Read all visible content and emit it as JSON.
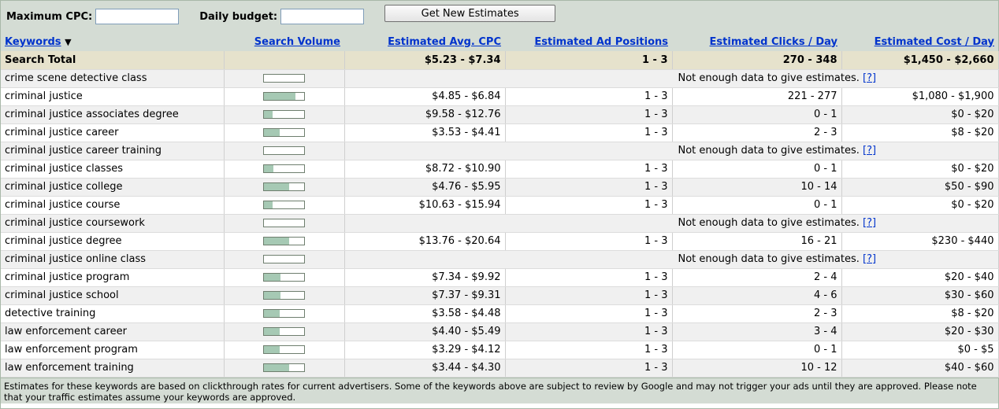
{
  "toolbar": {
    "max_cpc_label": "Maximum CPC:",
    "max_cpc_value": "",
    "daily_budget_label": "Daily budget:",
    "daily_budget_value": "",
    "estimate_button": "Get New Estimates"
  },
  "columns": {
    "keywords": "Keywords",
    "sort_arrow": "▼",
    "search_volume": "Search Volume",
    "avg_cpc": "Estimated Avg. CPC",
    "ad_positions": "Estimated Ad Positions",
    "clicks": "Estimated Clicks / Day",
    "cost": "Estimated Cost / Day"
  },
  "total": {
    "label": "Search Total",
    "cpc": "$5.23 - $7.34",
    "positions": "1 - 3",
    "clicks": "270 - 348",
    "cost": "$1,450 - $2,660"
  },
  "no_data_text": "Not enough data to give estimates.",
  "no_data_link": "[?]",
  "rows": [
    {
      "keyword": "crime scene detective class",
      "volume": 0.0,
      "nodata": true
    },
    {
      "keyword": "criminal justice",
      "volume": 0.78,
      "cpc": "$4.85 - $6.84",
      "positions": "1 - 3",
      "clicks": "221 - 277",
      "cost": "$1,080 - $1,900"
    },
    {
      "keyword": "criminal justice associates degree",
      "volume": 0.22,
      "cpc": "$9.58 - $12.76",
      "positions": "1 - 3",
      "clicks": "0 - 1",
      "cost": "$0 - $20"
    },
    {
      "keyword": "criminal justice career",
      "volume": 0.4,
      "cpc": "$3.53 - $4.41",
      "positions": "1 - 3",
      "clicks": "2 - 3",
      "cost": "$8 - $20"
    },
    {
      "keyword": "criminal justice career training",
      "volume": 0.0,
      "nodata": true
    },
    {
      "keyword": "criminal justice classes",
      "volume": 0.24,
      "cpc": "$8.72 - $10.90",
      "positions": "1 - 3",
      "clicks": "0 - 1",
      "cost": "$0 - $20"
    },
    {
      "keyword": "criminal justice college",
      "volume": 0.62,
      "cpc": "$4.76 - $5.95",
      "positions": "1 - 3",
      "clicks": "10 - 14",
      "cost": "$50 - $90"
    },
    {
      "keyword": "criminal justice course",
      "volume": 0.22,
      "cpc": "$10.63 - $15.94",
      "positions": "1 - 3",
      "clicks": "0 - 1",
      "cost": "$0 - $20"
    },
    {
      "keyword": "criminal justice coursework",
      "volume": 0.0,
      "nodata": true
    },
    {
      "keyword": "criminal justice degree",
      "volume": 0.62,
      "cpc": "$13.76 - $20.64",
      "positions": "1 - 3",
      "clicks": "16 - 21",
      "cost": "$230 - $440"
    },
    {
      "keyword": "criminal justice online class",
      "volume": 0.0,
      "nodata": true
    },
    {
      "keyword": "criminal justice program",
      "volume": 0.42,
      "cpc": "$7.34 - $9.92",
      "positions": "1 - 3",
      "clicks": "2 - 4",
      "cost": "$20 - $40"
    },
    {
      "keyword": "criminal justice school",
      "volume": 0.42,
      "cpc": "$7.37 - $9.31",
      "positions": "1 - 3",
      "clicks": "4 - 6",
      "cost": "$30 - $60"
    },
    {
      "keyword": "detective training",
      "volume": 0.4,
      "cpc": "$3.58 - $4.48",
      "positions": "1 - 3",
      "clicks": "2 - 3",
      "cost": "$8 - $20"
    },
    {
      "keyword": "law enforcement career",
      "volume": 0.4,
      "cpc": "$4.40 - $5.49",
      "positions": "1 - 3",
      "clicks": "3 - 4",
      "cost": "$20 - $30"
    },
    {
      "keyword": "law enforcement program",
      "volume": 0.4,
      "cpc": "$3.29 - $4.12",
      "positions": "1 - 3",
      "clicks": "0 - 1",
      "cost": "$0 - $5"
    },
    {
      "keyword": "law enforcement training",
      "volume": 0.62,
      "cpc": "$3.44 - $4.30",
      "positions": "1 - 3",
      "clicks": "10 - 12",
      "cost": "$40 - $60"
    }
  ],
  "footer": "Estimates for these keywords are based on clickthrough rates for current advertisers. Some of the keywords above are subject to review by Google and may not trigger your ads until they are approved. Please note that your traffic estimates assume your keywords are approved.",
  "colors": {
    "header_bg": "#d4dcd4",
    "total_bg": "#e6e2cc",
    "link": "#0033cc",
    "volume_fill": "#a6c9b4"
  }
}
